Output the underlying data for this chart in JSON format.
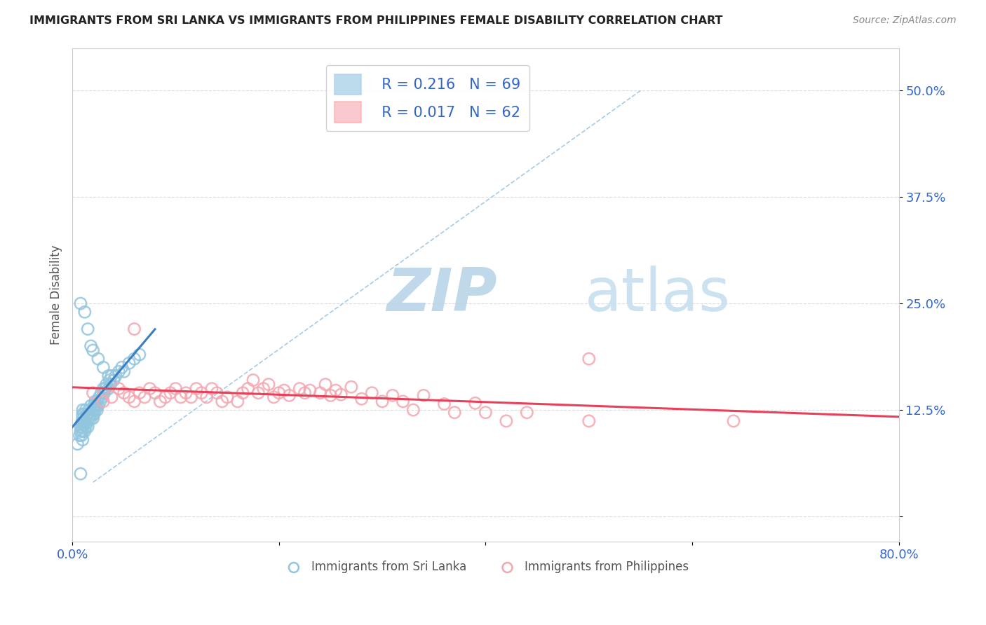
{
  "title": "IMMIGRANTS FROM SRI LANKA VS IMMIGRANTS FROM PHILIPPINES FEMALE DISABILITY CORRELATION CHART",
  "source": "Source: ZipAtlas.com",
  "ylabel": "Female Disability",
  "xlim": [
    0.0,
    0.8
  ],
  "ylim": [
    -0.03,
    0.55
  ],
  "ytick_vals": [
    0.0,
    0.125,
    0.25,
    0.375,
    0.5
  ],
  "ytick_labels": [
    "",
    "12.5%",
    "25.0%",
    "37.5%",
    "50.0%"
  ],
  "xtick_vals": [
    0.0,
    0.2,
    0.4,
    0.6,
    0.8
  ],
  "xtick_labels": [
    "0.0%",
    "",
    "",
    "",
    "80.0%"
  ],
  "sri_lanka_R": 0.216,
  "sri_lanka_N": 69,
  "philippines_R": 0.017,
  "philippines_N": 62,
  "sri_lanka_color": "#92c5de",
  "philippines_color": "#f4a6b0",
  "sri_lanka_line_color": "#3a7fc1",
  "philippines_line_color": "#e8405a",
  "background_color": "#ffffff",
  "grid_color": "#cccccc",
  "watermark_text": "ZIPatlas",
  "watermark_color_zip": "#b8d4e8",
  "watermark_color_atlas": "#c8dff0",
  "diag_line_color": "#8fbfe0",
  "sri_lanka_x": [
    0.005,
    0.007,
    0.008,
    0.008,
    0.009,
    0.009,
    0.01,
    0.01,
    0.01,
    0.01,
    0.01,
    0.01,
    0.01,
    0.011,
    0.011,
    0.012,
    0.012,
    0.013,
    0.013,
    0.013,
    0.014,
    0.014,
    0.015,
    0.015,
    0.016,
    0.016,
    0.017,
    0.018,
    0.018,
    0.019,
    0.02,
    0.02,
    0.021,
    0.021,
    0.022,
    0.022,
    0.023,
    0.024,
    0.024,
    0.025,
    0.026,
    0.027,
    0.028,
    0.029,
    0.03,
    0.031,
    0.032,
    0.033,
    0.035,
    0.036,
    0.037,
    0.038,
    0.04,
    0.042,
    0.045,
    0.048,
    0.05,
    0.055,
    0.06,
    0.065,
    0.008,
    0.012,
    0.015,
    0.018,
    0.02,
    0.025,
    0.03,
    0.035,
    0.008
  ],
  "sri_lanka_y": [
    0.085,
    0.095,
    0.1,
    0.105,
    0.095,
    0.11,
    0.09,
    0.1,
    0.105,
    0.11,
    0.115,
    0.12,
    0.125,
    0.11,
    0.12,
    0.1,
    0.11,
    0.105,
    0.115,
    0.125,
    0.11,
    0.12,
    0.105,
    0.12,
    0.115,
    0.125,
    0.12,
    0.115,
    0.13,
    0.12,
    0.115,
    0.125,
    0.12,
    0.13,
    0.125,
    0.135,
    0.13,
    0.125,
    0.135,
    0.13,
    0.14,
    0.135,
    0.145,
    0.14,
    0.15,
    0.145,
    0.15,
    0.155,
    0.15,
    0.16,
    0.155,
    0.165,
    0.16,
    0.165,
    0.17,
    0.175,
    0.17,
    0.18,
    0.185,
    0.19,
    0.25,
    0.24,
    0.22,
    0.2,
    0.195,
    0.185,
    0.175,
    0.165,
    0.05
  ],
  "philippines_x": [
    0.02,
    0.03,
    0.038,
    0.045,
    0.05,
    0.055,
    0.06,
    0.065,
    0.07,
    0.075,
    0.08,
    0.085,
    0.09,
    0.095,
    0.1,
    0.105,
    0.11,
    0.115,
    0.12,
    0.125,
    0.13,
    0.135,
    0.14,
    0.145,
    0.15,
    0.16,
    0.165,
    0.17,
    0.175,
    0.18,
    0.185,
    0.19,
    0.195,
    0.2,
    0.205,
    0.21,
    0.22,
    0.225,
    0.23,
    0.24,
    0.245,
    0.25,
    0.255,
    0.26,
    0.27,
    0.28,
    0.29,
    0.3,
    0.31,
    0.32,
    0.33,
    0.34,
    0.36,
    0.37,
    0.39,
    0.4,
    0.42,
    0.44,
    0.5,
    0.64,
    0.06,
    0.5
  ],
  "philippines_y": [
    0.145,
    0.135,
    0.14,
    0.15,
    0.145,
    0.14,
    0.135,
    0.145,
    0.14,
    0.15,
    0.145,
    0.135,
    0.14,
    0.145,
    0.15,
    0.14,
    0.145,
    0.14,
    0.15,
    0.145,
    0.14,
    0.15,
    0.145,
    0.135,
    0.14,
    0.135,
    0.145,
    0.15,
    0.16,
    0.145,
    0.15,
    0.155,
    0.14,
    0.145,
    0.148,
    0.142,
    0.15,
    0.145,
    0.148,
    0.145,
    0.155,
    0.142,
    0.148,
    0.143,
    0.152,
    0.138,
    0.145,
    0.135,
    0.142,
    0.135,
    0.125,
    0.142,
    0.132,
    0.122,
    0.133,
    0.122,
    0.112,
    0.122,
    0.112,
    0.112,
    0.22,
    0.185
  ]
}
